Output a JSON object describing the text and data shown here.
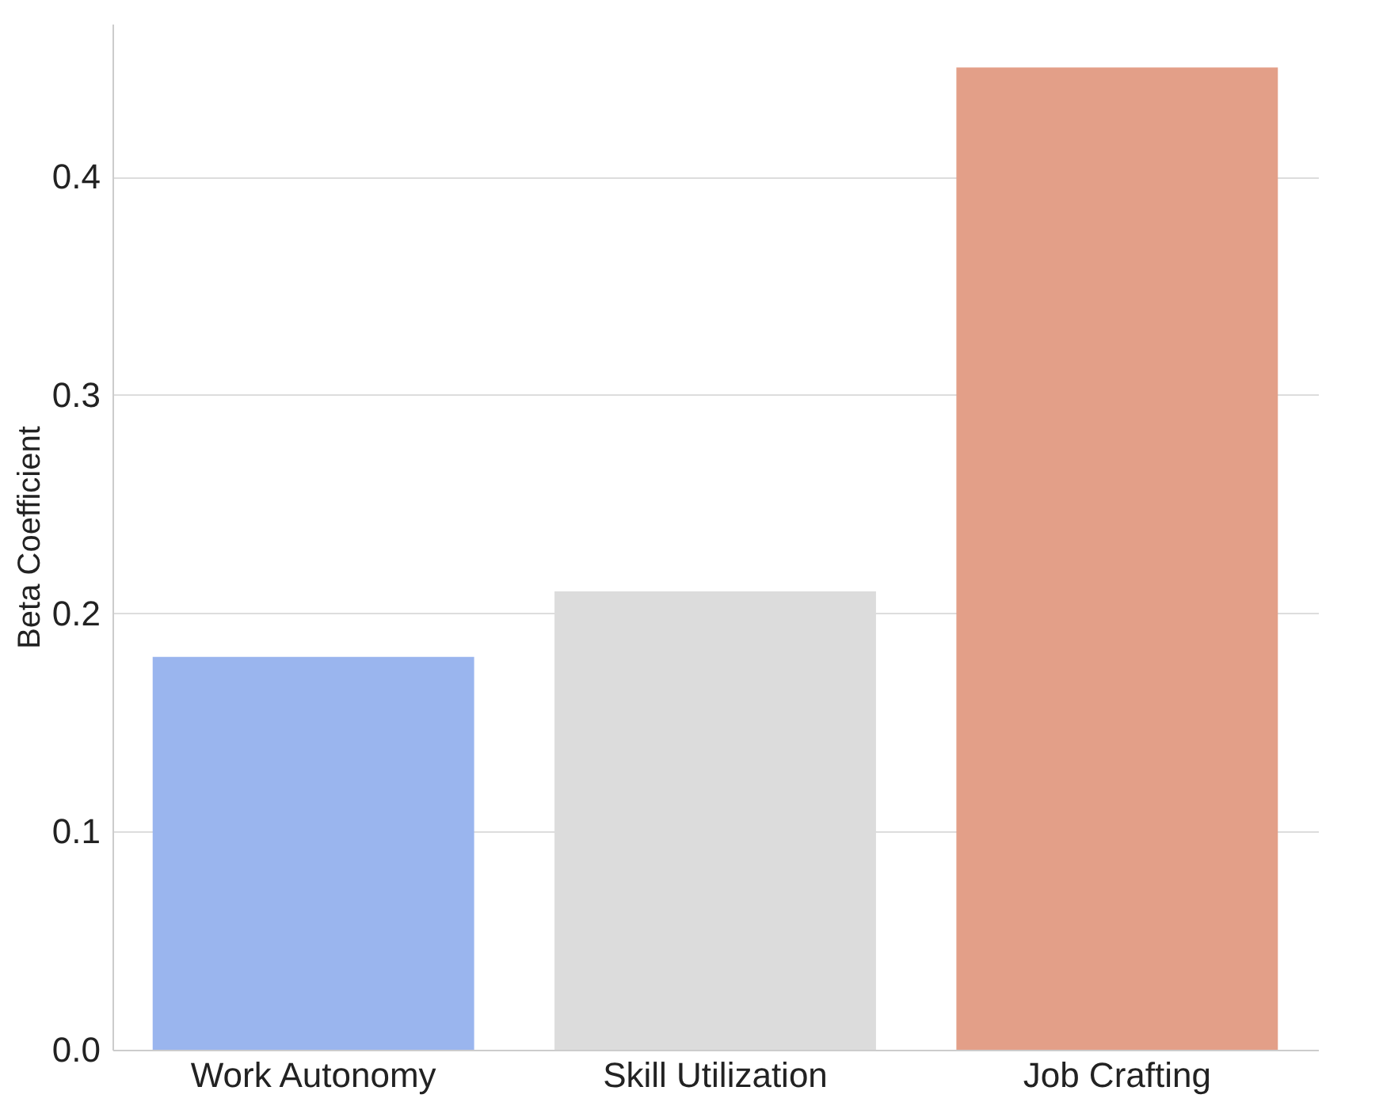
{
  "chart_data": {
    "type": "bar",
    "ylabel": "Beta Coefficient",
    "categories": [
      "Work Autonomy",
      "Skill Utilization",
      "Job Crafting"
    ],
    "colors": [
      "#9ab5ee",
      "#dcdcdc",
      "#e39f88"
    ],
    "values": [
      0.18,
      0.21,
      0.45
    ],
    "ylim": [
      0,
      0.47
    ],
    "yticks": [
      {
        "value": 0,
        "label": "0.0"
      },
      0.1,
      0.2,
      0.3,
      0.4
    ],
    "grid": "y"
  }
}
